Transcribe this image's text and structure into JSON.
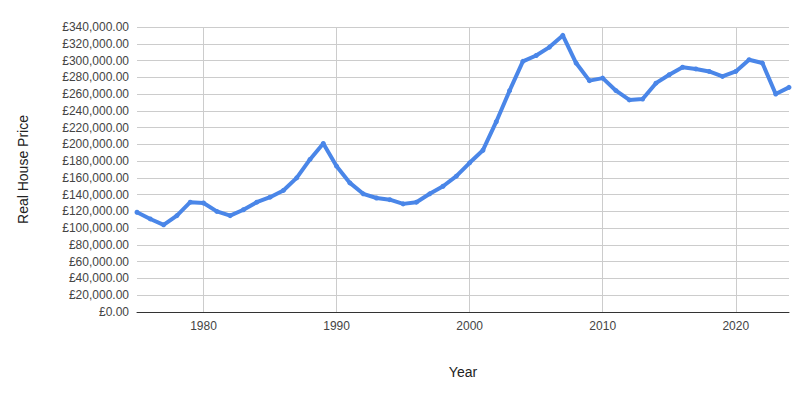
{
  "chart_data": {
    "type": "line",
    "xlabel": "Year",
    "ylabel": "Real House Price",
    "x": [
      1975,
      1976,
      1977,
      1978,
      1979,
      1980,
      1981,
      1982,
      1983,
      1984,
      1985,
      1986,
      1987,
      1988,
      1989,
      1990,
      1991,
      1992,
      1993,
      1994,
      1995,
      1996,
      1997,
      1998,
      1999,
      2000,
      2001,
      2002,
      2003,
      2004,
      2005,
      2006,
      2007,
      2008,
      2009,
      2010,
      2011,
      2012,
      2013,
      2014,
      2015,
      2016,
      2017,
      2018,
      2019,
      2020,
      2021,
      2022,
      2023,
      2024
    ],
    "values": [
      119000,
      111000,
      104000,
      115000,
      131000,
      130000,
      120000,
      115000,
      122000,
      131000,
      137000,
      145000,
      160000,
      182000,
      201000,
      174000,
      154000,
      141000,
      136000,
      134000,
      129000,
      131000,
      141000,
      150000,
      162000,
      178000,
      193000,
      227000,
      264000,
      299000,
      306000,
      316000,
      330000,
      297000,
      276000,
      279000,
      264000,
      253000,
      254000,
      273000,
      283000,
      292000,
      290000,
      287000,
      281000,
      287000,
      301000,
      297000,
      260000,
      268000
    ],
    "color": "#4a86e8",
    "marker": "circle",
    "xlim": [
      1975,
      2024
    ],
    "xticks": [
      1980,
      1990,
      2000,
      2010,
      2020
    ],
    "ylim": [
      0,
      340000
    ],
    "yticks": [
      {
        "value": 0,
        "label": "£0.00"
      },
      {
        "value": 20000,
        "label": "£20,000.00"
      },
      {
        "value": 40000,
        "label": "£40,000.00"
      },
      {
        "value": 60000,
        "label": "£60,000.00"
      },
      {
        "value": 80000,
        "label": "£80,000.00"
      },
      {
        "value": 100000,
        "label": "£100,000.00"
      },
      {
        "value": 120000,
        "label": "£120,000.00"
      },
      {
        "value": 140000,
        "label": "£140,000.00"
      },
      {
        "value": 160000,
        "label": "£160,000.00"
      },
      {
        "value": 180000,
        "label": "£180,000.00"
      },
      {
        "value": 200000,
        "label": "£200,000.00"
      },
      {
        "value": 220000,
        "label": "£220,000.00"
      },
      {
        "value": 240000,
        "label": "£240,000.00"
      },
      {
        "value": 260000,
        "label": "£260,000.00"
      },
      {
        "value": 280000,
        "label": "£280,000.00"
      },
      {
        "value": 300000,
        "label": "£300,000.00"
      },
      {
        "value": 320000,
        "label": "£320,000.00"
      },
      {
        "value": 340000,
        "label": "£340,000.00"
      }
    ],
    "grid": true
  }
}
